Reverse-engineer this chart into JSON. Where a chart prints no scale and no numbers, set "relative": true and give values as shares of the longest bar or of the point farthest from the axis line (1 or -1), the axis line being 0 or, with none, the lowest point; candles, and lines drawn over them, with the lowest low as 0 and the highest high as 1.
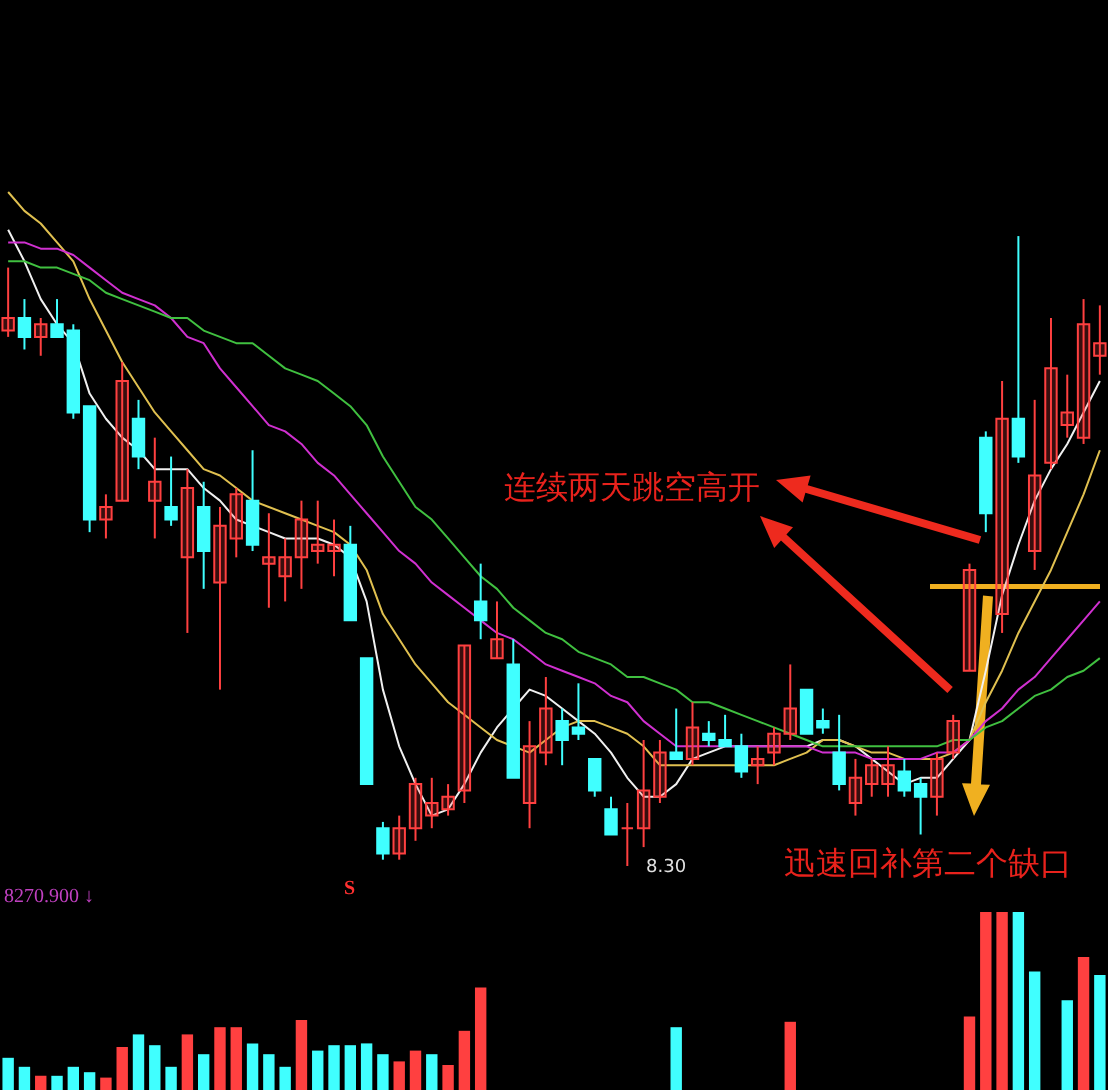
{
  "chart_data": [
    {
      "type": "candlestick",
      "relative": true,
      "categories": [
        null,
        null,
        null,
        null,
        null,
        null,
        null,
        null,
        null,
        null,
        null,
        null,
        null,
        null,
        null,
        null,
        null,
        null,
        null,
        null,
        null,
        null,
        null,
        null,
        null,
        null,
        null,
        null,
        null,
        null,
        null,
        null,
        null,
        null,
        null,
        null,
        null,
        null,
        null,
        null,
        null,
        null,
        null,
        null,
        null,
        null,
        null,
        null,
        null,
        null,
        null,
        null,
        null,
        null,
        null,
        null,
        null,
        null,
        null,
        null,
        null,
        null,
        null,
        null,
        null,
        null,
        null,
        null
      ],
      "ohlc": [
        [
          0.85,
          0.95,
          0.84,
          0.87
        ],
        [
          0.87,
          0.9,
          0.82,
          0.84
        ],
        [
          0.84,
          0.87,
          0.81,
          0.86
        ],
        [
          0.86,
          0.9,
          0.84,
          0.84
        ],
        [
          0.85,
          0.86,
          0.71,
          0.72
        ],
        [
          0.73,
          0.73,
          0.53,
          0.55
        ],
        [
          0.55,
          0.59,
          0.52,
          0.57
        ],
        [
          0.58,
          0.8,
          0.58,
          0.77
        ],
        [
          0.71,
          0.74,
          0.63,
          0.65
        ],
        [
          0.58,
          0.68,
          0.52,
          0.61
        ],
        [
          0.57,
          0.65,
          0.54,
          0.55
        ],
        [
          0.49,
          0.63,
          0.37,
          0.6
        ],
        [
          0.57,
          0.61,
          0.44,
          0.5
        ],
        [
          0.45,
          0.57,
          0.28,
          0.54
        ],
        [
          0.52,
          0.6,
          0.49,
          0.59
        ],
        [
          0.58,
          0.66,
          0.5,
          0.51
        ],
        [
          0.48,
          0.56,
          0.41,
          0.49
        ],
        [
          0.46,
          0.52,
          0.42,
          0.49
        ],
        [
          0.49,
          0.58,
          0.44,
          0.55
        ],
        [
          0.5,
          0.58,
          0.48,
          0.51
        ],
        [
          0.5,
          0.55,
          0.46,
          0.51
        ],
        [
          0.51,
          0.54,
          0.39,
          0.39
        ],
        [
          0.33,
          0.33,
          0.13,
          0.13
        ],
        [
          0.06,
          0.07,
          0.01,
          0.02
        ],
        [
          0.02,
          0.08,
          0.01,
          0.06
        ],
        [
          0.06,
          0.14,
          0.04,
          0.13
        ],
        [
          0.08,
          0.14,
          0.06,
          0.1
        ],
        [
          0.09,
          0.13,
          0.08,
          0.11
        ],
        [
          0.12,
          0.35,
          0.1,
          0.35
        ],
        [
          0.42,
          0.48,
          0.36,
          0.39
        ],
        [
          0.33,
          0.42,
          0.33,
          0.36
        ],
        [
          0.32,
          0.36,
          0.14,
          0.14
        ],
        [
          0.1,
          0.23,
          0.06,
          0.19
        ],
        [
          0.18,
          0.3,
          0.16,
          0.25
        ],
        [
          0.23,
          0.25,
          0.16,
          0.2
        ],
        [
          0.22,
          0.29,
          0.2,
          0.21
        ],
        [
          0.17,
          0.17,
          0.11,
          0.12
        ],
        [
          0.09,
          0.11,
          0.05,
          0.05
        ],
        [
          0.06,
          0.1,
          0,
          0.06
        ],
        [
          0.06,
          0.2,
          0.03,
          0.12
        ],
        [
          0.11,
          0.2,
          0.1,
          0.18
        ],
        [
          0.18,
          0.25,
          0.17,
          0.17
        ],
        [
          0.17,
          0.26,
          0.16,
          0.22
        ],
        [
          0.21,
          0.23,
          0.19,
          0.2
        ],
        [
          0.2,
          0.24,
          0.19,
          0.19
        ],
        [
          0.19,
          0.21,
          0.14,
          0.15
        ],
        [
          0.16,
          0.19,
          0.13,
          0.17
        ],
        [
          0.18,
          0.22,
          0.16,
          0.21
        ],
        [
          0.21,
          0.32,
          0.2,
          0.25
        ],
        [
          0.28,
          0.28,
          0.21,
          0.21
        ],
        [
          0.23,
          0.25,
          0.21,
          0.22
        ],
        [
          0.18,
          0.24,
          0.12,
          0.13
        ],
        [
          0.1,
          0.17,
          0.08,
          0.14
        ],
        [
          0.13,
          0.17,
          0.11,
          0.16
        ],
        [
          0.13,
          0.19,
          0.11,
          0.16
        ],
        [
          0.15,
          0.17,
          0.11,
          0.12
        ],
        [
          0.13,
          0.14,
          0.05,
          0.11
        ],
        [
          0.11,
          0.18,
          0.08,
          0.17
        ],
        [
          0.18,
          0.24,
          0.17,
          0.23
        ],
        [
          0.31,
          0.48,
          0.31,
          0.47
        ],
        [
          0.68,
          0.69,
          0.53,
          0.56
        ],
        [
          0.4,
          0.77,
          0.37,
          0.71
        ],
        [
          0.71,
          1,
          0.64,
          0.65
        ],
        [
          0.5,
          0.74,
          0.47,
          0.62
        ],
        [
          0.64,
          0.87,
          0.63,
          0.79
        ],
        [
          0.7,
          0.78,
          0.68,
          0.72
        ],
        [
          0.68,
          0.9,
          0.67,
          0.86
        ],
        [
          0.81,
          0.89,
          0.78,
          0.83
        ]
      ],
      "colors": [
        "#ff4040",
        "#40ffff",
        "#ff4040",
        "#40ffff",
        "#40ffff",
        "#40ffff",
        "#ff4040",
        "#ff4040",
        "#40ffff",
        "#ff4040",
        "#40ffff",
        "#ff4040",
        "#40ffff",
        "#ff4040",
        "#ff4040",
        "#40ffff",
        "#ff4040",
        "#ff4040",
        "#ff4040",
        "#ff4040",
        "#ff4040",
        "#40ffff",
        "#40ffff",
        "#40ffff",
        "#ff4040",
        "#ff4040",
        "#ff4040",
        "#ff4040",
        "#ff4040",
        "#40ffff",
        "#ff4040",
        "#40ffff",
        "#ff4040",
        "#ff4040",
        "#40ffff",
        "#40ffff",
        "#40ffff",
        "#40ffff",
        "#ff4040",
        "#ff4040",
        "#ff4040",
        "#40ffff",
        "#ff4040",
        "#40ffff",
        "#40ffff",
        "#40ffff",
        "#ff4040",
        "#ff4040",
        "#ff4040",
        "#40ffff",
        "#40ffff",
        "#40ffff",
        "#ff4040",
        "#ff4040",
        "#ff4040",
        "#40ffff",
        "#40ffff",
        "#ff4040",
        "#ff4040",
        "#ff4040",
        "#40ffff",
        "#ff4040",
        "#40ffff",
        "#ff4040",
        "#ff4040",
        "#ff4040",
        "#ff4040",
        "#ff4040"
      ],
      "series": [
        {
          "type": "line",
          "color": "#f0f0f0",
          "values": [
            1.01,
            0.96,
            0.9,
            0.86,
            0.83,
            0.75,
            0.71,
            0.68,
            0.66,
            0.63,
            0.63,
            0.63,
            0.6,
            0.58,
            0.55,
            0.54,
            0.53,
            0.52,
            0.52,
            0.52,
            0.51,
            0.49,
            0.42,
            0.28,
            0.19,
            0.13,
            0.08,
            0.09,
            0.13,
            0.18,
            0.22,
            0.25,
            0.28,
            0.27,
            0.25,
            0.23,
            0.21,
            0.18,
            0.14,
            0.11,
            0.11,
            0.13,
            0.17,
            0.18,
            0.19,
            0.19,
            0.19,
            0.19,
            0.19,
            0.19,
            0.2,
            0.2,
            0.19,
            0.17,
            0.15,
            0.13,
            0.14,
            0.14,
            0.17,
            0.2,
            0.31,
            0.43,
            0.51,
            0.58,
            0.63,
            0.67,
            0.72,
            0.77
          ]
        },
        {
          "type": "line",
          "color": "#e0c050",
          "values": [
            1.07,
            1.04,
            1.02,
            0.99,
            0.96,
            0.9,
            0.85,
            0.8,
            0.76,
            0.72,
            0.69,
            0.66,
            0.63,
            0.62,
            0.6,
            0.58,
            0.57,
            0.56,
            0.55,
            0.54,
            0.53,
            0.51,
            0.47,
            0.4,
            0.36,
            0.32,
            0.29,
            0.26,
            0.24,
            0.22,
            0.2,
            0.19,
            0.18,
            0.2,
            0.22,
            0.23,
            0.23,
            0.22,
            0.21,
            0.19,
            0.16,
            0.16,
            0.16,
            0.16,
            0.16,
            0.16,
            0.16,
            0.16,
            0.17,
            0.18,
            0.2,
            0.2,
            0.19,
            0.18,
            0.18,
            0.17,
            0.17,
            0.17,
            0.18,
            0.2,
            0.26,
            0.31,
            0.37,
            0.42,
            0.47,
            0.53,
            0.59,
            0.66
          ]
        },
        {
          "type": "line",
          "color": "#d030d0",
          "values": [
            0.99,
            0.99,
            0.98,
            0.98,
            0.97,
            0.95,
            0.93,
            0.91,
            0.9,
            0.89,
            0.87,
            0.84,
            0.83,
            0.79,
            0.76,
            0.73,
            0.7,
            0.69,
            0.67,
            0.64,
            0.62,
            0.59,
            0.56,
            0.53,
            0.5,
            0.48,
            0.45,
            0.43,
            0.41,
            0.39,
            0.37,
            0.36,
            0.34,
            0.32,
            0.31,
            0.3,
            0.29,
            0.27,
            0.26,
            0.23,
            0.21,
            0.19,
            0.19,
            0.19,
            0.19,
            0.19,
            0.19,
            0.19,
            0.19,
            0.19,
            0.18,
            0.18,
            0.18,
            0.17,
            0.17,
            0.17,
            0.17,
            0.18,
            0.18,
            0.2,
            0.23,
            0.25,
            0.28,
            0.3,
            0.33,
            0.36,
            0.39,
            0.42
          ]
        },
        {
          "type": "line",
          "color": "#40c040",
          "values": [
            0.96,
            0.96,
            0.95,
            0.95,
            0.94,
            0.93,
            0.91,
            0.9,
            0.89,
            0.88,
            0.87,
            0.87,
            0.85,
            0.84,
            0.83,
            0.83,
            0.81,
            0.79,
            0.78,
            0.77,
            0.75,
            0.73,
            0.7,
            0.65,
            0.61,
            0.57,
            0.55,
            0.52,
            0.49,
            0.46,
            0.44,
            0.41,
            0.39,
            0.37,
            0.36,
            0.34,
            0.33,
            0.32,
            0.3,
            0.3,
            0.29,
            0.28,
            0.26,
            0.26,
            0.25,
            0.24,
            0.23,
            0.22,
            0.21,
            0.2,
            0.19,
            0.19,
            0.19,
            0.19,
            0.19,
            0.19,
            0.19,
            0.19,
            0.2,
            0.2,
            0.22,
            0.23,
            0.25,
            0.27,
            0.28,
            0.3,
            0.31,
            0.33
          ]
        }
      ],
      "annotations": [
        "S",
        "连续两天跳空高开",
        "迅速回补第二个缺口",
        "8.30"
      ]
    },
    {
      "type": "bar",
      "relative": true,
      "categories": [
        null,
        null,
        null,
        null,
        null,
        null,
        null,
        null,
        null,
        null,
        null,
        null,
        null,
        null,
        null,
        null,
        null,
        null,
        null,
        null,
        null,
        null,
        null,
        null,
        null,
        null,
        null,
        null,
        null,
        null,
        null,
        null,
        null,
        null,
        null,
        null,
        null,
        null,
        null,
        null,
        null,
        null,
        null,
        null,
        null,
        null,
        null,
        null,
        null,
        null,
        null,
        null,
        null,
        null,
        null,
        null,
        null,
        null,
        null,
        null,
        null,
        null,
        null,
        null,
        null,
        null,
        null,
        null
      ],
      "values": [
        0.19,
        0.14,
        0.09,
        0.09,
        0.14,
        0.11,
        0.08,
        0.25,
        0.32,
        0.26,
        0.14,
        0.32,
        0.21,
        0.36,
        0.36,
        0.27,
        0.21,
        0.14,
        0.4,
        0.23,
        0.26,
        0.26,
        0.27,
        0.21,
        0.17,
        0.23,
        0.21,
        0.15,
        0.34,
        0.58,
        null,
        null,
        null,
        null,
        null,
        null,
        null,
        null,
        null,
        null,
        null,
        0.36,
        null,
        null,
        null,
        null,
        null,
        null,
        0.39,
        null,
        null,
        null,
        null,
        null,
        null,
        null,
        null,
        null,
        null,
        0.42,
        1,
        1,
        1,
        0.67,
        null,
        0.51,
        0.75,
        0.65
      ],
      "colors": [
        "#40ffff",
        "#40ffff",
        "#ff4040",
        "#40ffff",
        "#40ffff",
        "#40ffff",
        "#ff4040",
        "#ff4040",
        "#40ffff",
        "#40ffff",
        "#40ffff",
        "#ff4040",
        "#40ffff",
        "#ff4040",
        "#ff4040",
        "#40ffff",
        "#40ffff",
        "#40ffff",
        "#ff4040",
        "#40ffff",
        "#40ffff",
        "#40ffff",
        "#40ffff",
        "#40ffff",
        "#ff4040",
        "#ff4040",
        "#40ffff",
        "#ff4040",
        "#ff4040",
        "#ff4040",
        "#ff4040",
        "#ff4040",
        "#ff4040",
        "#ff4040",
        "#ff4040",
        "#ff4040",
        "#ff4040",
        "#ff4040",
        "#ff4040",
        "#ff4040",
        "#ff4040",
        "#40ffff",
        "#ff4040",
        "#ff4040",
        "#ff4040",
        "#ff4040",
        "#ff4040",
        "#ff4040",
        "#ff4040",
        "#ff4040",
        "#ff4040",
        "#ff4040",
        "#ff4040",
        "#ff4040",
        "#ff4040",
        "#ff4040",
        "#ff4040",
        "#ff4040",
        "#ff4040",
        "#ff4040",
        "#ff4040",
        "#ff4040",
        "#40ffff",
        "#40ffff",
        "#ff4040",
        "#40ffff",
        "#ff4040",
        "#40ffff"
      ],
      "annotations": [
        "8270.900 ↓"
      ]
    }
  ]
}
